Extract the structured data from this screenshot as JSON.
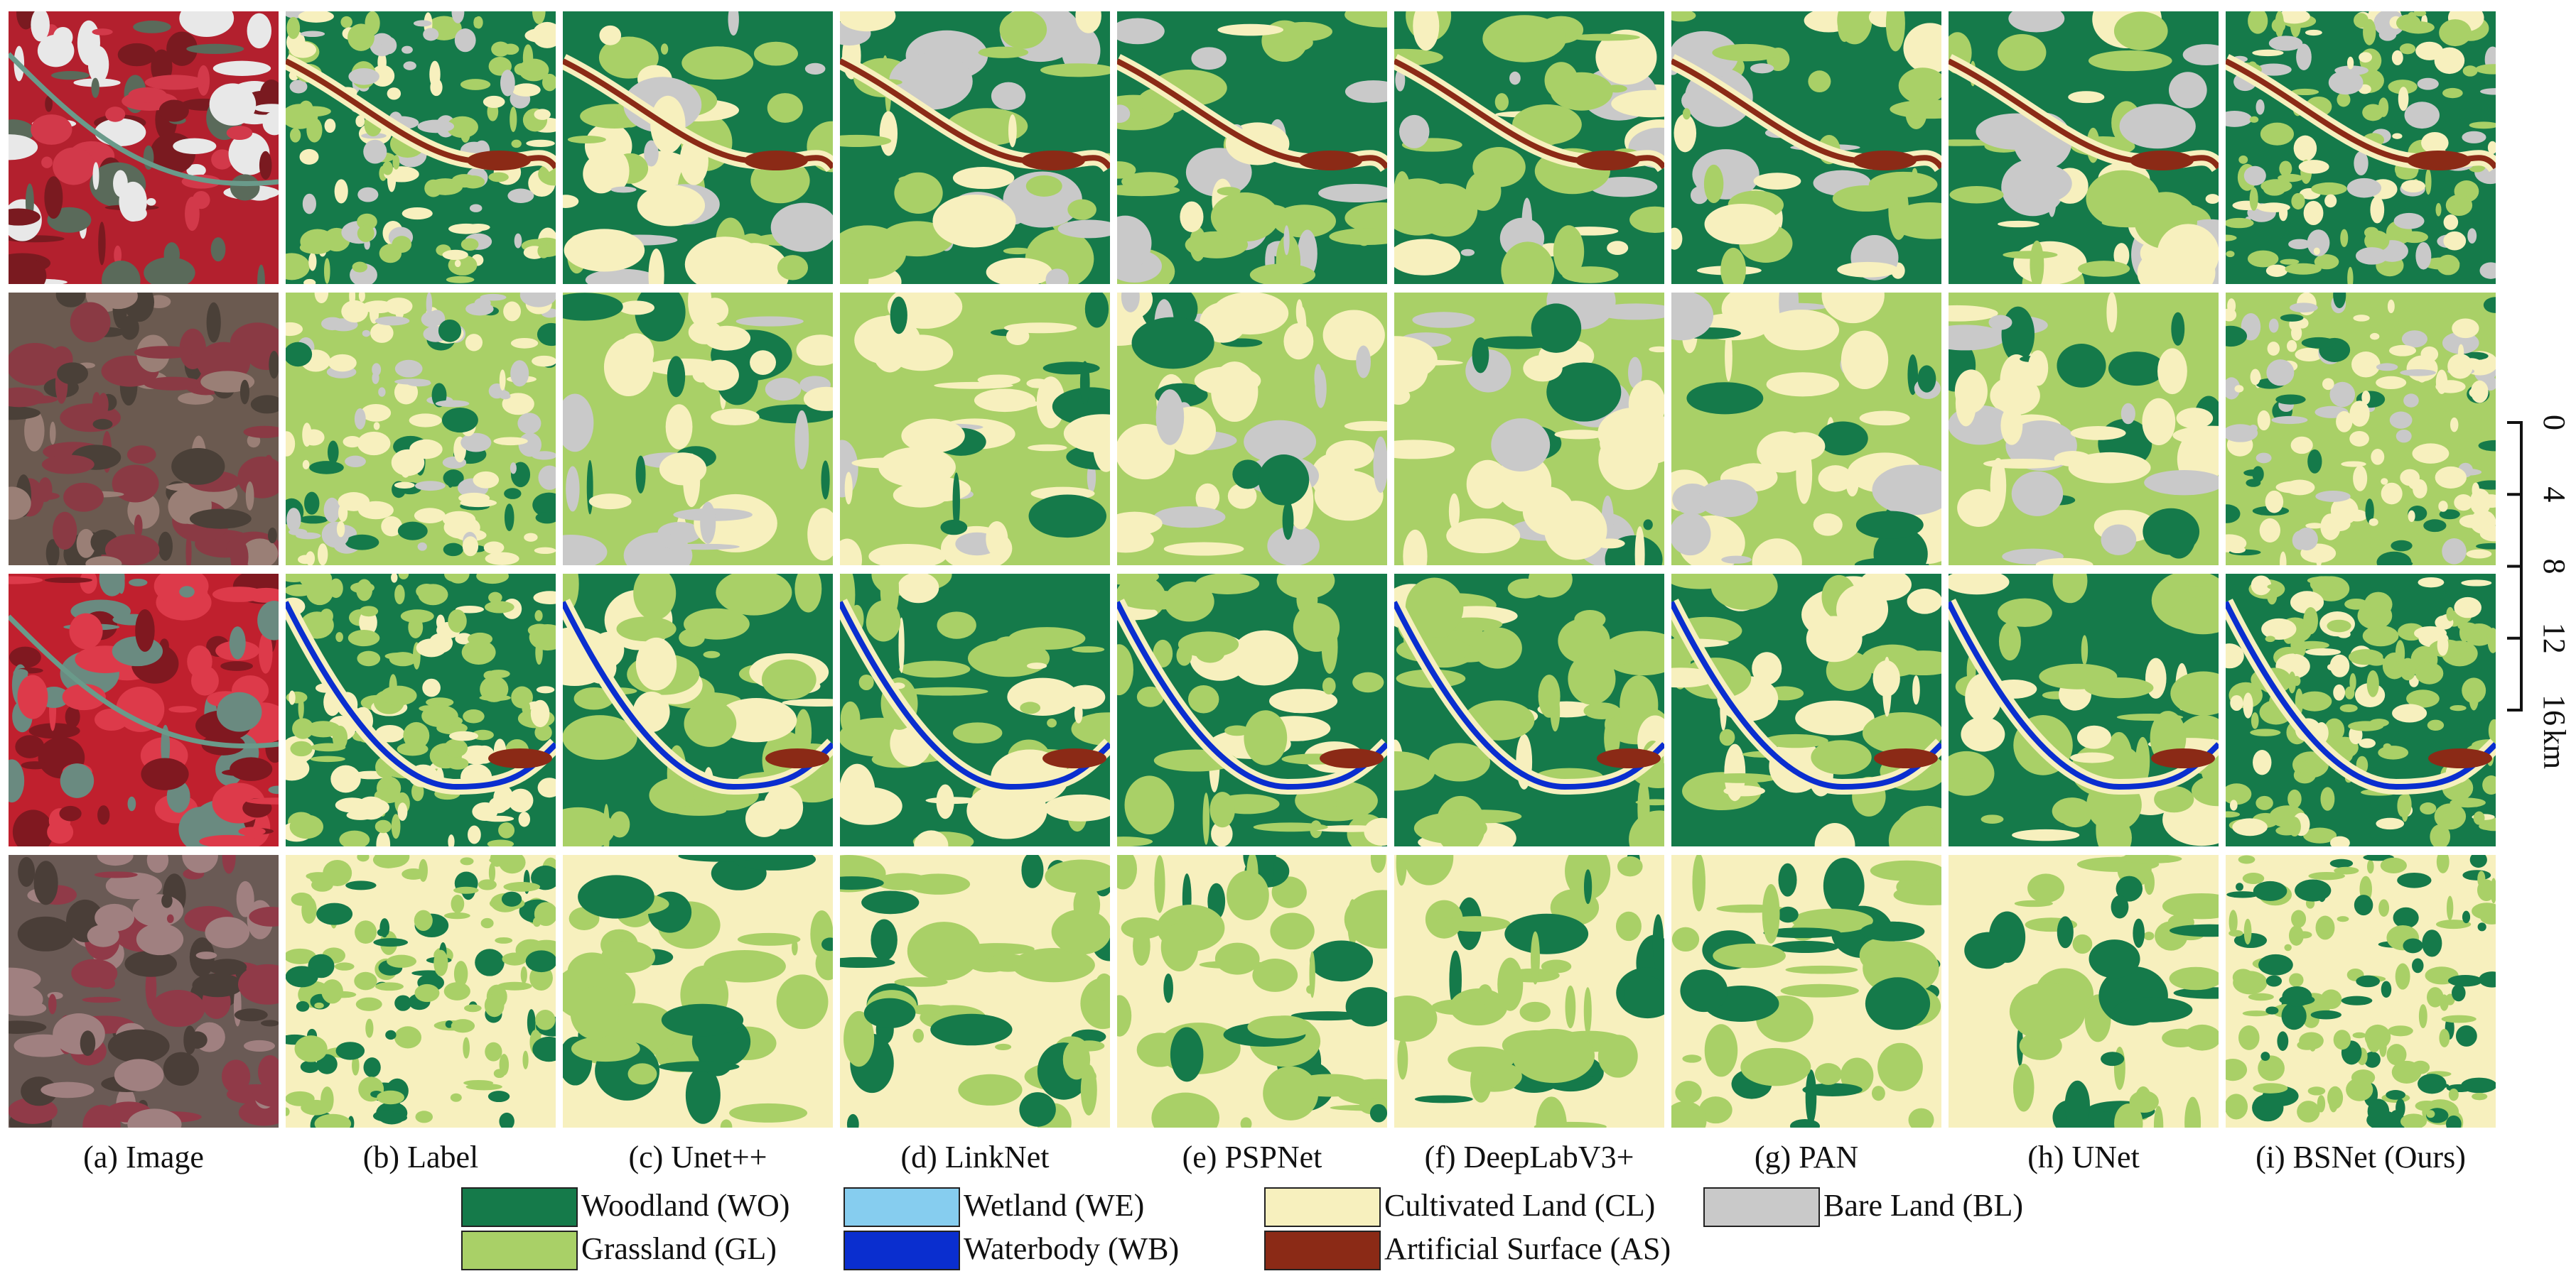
{
  "columns": [
    "(a) Image",
    "(b) Label",
    "(c) Unet++",
    "(d) LinkNet",
    "(e) PSPNet",
    "(f) DeepLabV3+",
    "(g) PAN",
    "(h) UNet",
    "(i) BSNet (Ours)"
  ],
  "legend": [
    {
      "label": "Woodland (WO)",
      "color": "#157a4a"
    },
    {
      "label": "Grassland (GL)",
      "color": "#a9d067"
    },
    {
      "label": "Wetland (WE)",
      "color": "#86cdef"
    },
    {
      "label": "Waterbody (WB)",
      "color": "#0a2ecf"
    },
    {
      "label": "Cultivated Land (CL)",
      "color": "#f7f0be"
    },
    {
      "label": "Artificial Surface (AS)",
      "color": "#8b2a16"
    },
    {
      "label": "Bare Land (BL)",
      "color": "#c9c9c9"
    }
  ],
  "scale_bar": {
    "ticks": [
      "0",
      "4",
      "8",
      "12",
      "16"
    ],
    "unit": "km"
  }
}
